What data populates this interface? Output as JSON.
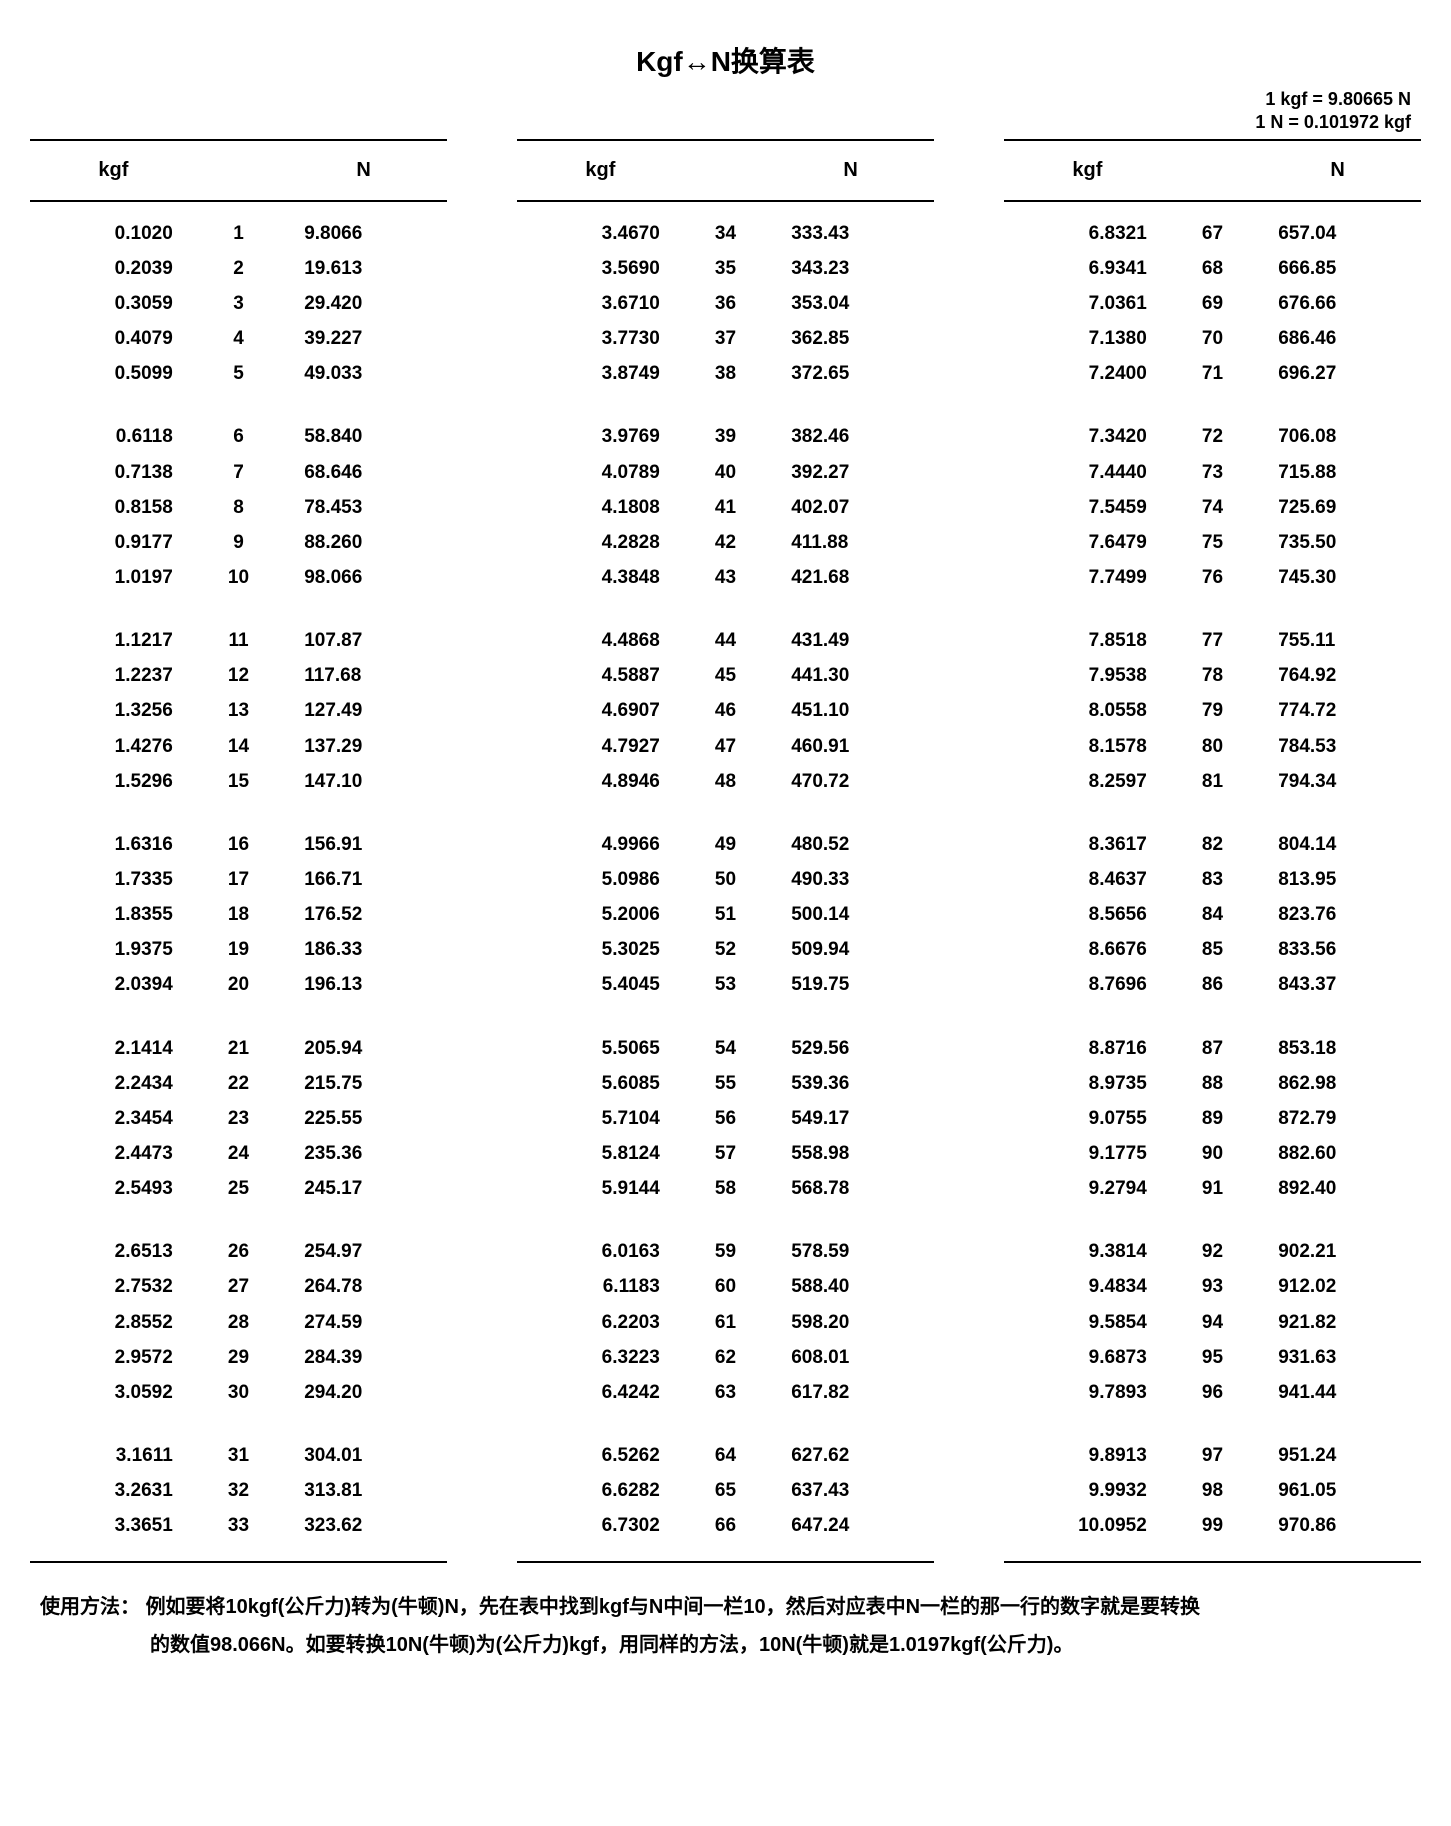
{
  "title": "Kgf↔N换算表",
  "conversion_lines": [
    "1 kgf = 9.80665 N",
    "1 N = 0.101972 kgf"
  ],
  "headers": {
    "left": "kgf",
    "mid": "",
    "right": "N"
  },
  "columns": [
    {
      "groups": [
        [
          {
            "k": "0.1020",
            "i": "1",
            "n": "9.8066"
          },
          {
            "k": "0.2039",
            "i": "2",
            "n": "19.613"
          },
          {
            "k": "0.3059",
            "i": "3",
            "n": "29.420"
          },
          {
            "k": "0.4079",
            "i": "4",
            "n": "39.227"
          },
          {
            "k": "0.5099",
            "i": "5",
            "n": "49.033"
          }
        ],
        [
          {
            "k": "0.6118",
            "i": "6",
            "n": "58.840"
          },
          {
            "k": "0.7138",
            "i": "7",
            "n": "68.646"
          },
          {
            "k": "0.8158",
            "i": "8",
            "n": "78.453"
          },
          {
            "k": "0.9177",
            "i": "9",
            "n": "88.260"
          },
          {
            "k": "1.0197",
            "i": "10",
            "n": "98.066"
          }
        ],
        [
          {
            "k": "1.1217",
            "i": "11",
            "n": "107.87"
          },
          {
            "k": "1.2237",
            "i": "12",
            "n": "117.68"
          },
          {
            "k": "1.3256",
            "i": "13",
            "n": "127.49"
          },
          {
            "k": "1.4276",
            "i": "14",
            "n": "137.29"
          },
          {
            "k": "1.5296",
            "i": "15",
            "n": "147.10"
          }
        ],
        [
          {
            "k": "1.6316",
            "i": "16",
            "n": "156.91"
          },
          {
            "k": "1.7335",
            "i": "17",
            "n": "166.71"
          },
          {
            "k": "1.8355",
            "i": "18",
            "n": "176.52"
          },
          {
            "k": "1.9375",
            "i": "19",
            "n": "186.33"
          },
          {
            "k": "2.0394",
            "i": "20",
            "n": "196.13"
          }
        ],
        [
          {
            "k": "2.1414",
            "i": "21",
            "n": "205.94"
          },
          {
            "k": "2.2434",
            "i": "22",
            "n": "215.75"
          },
          {
            "k": "2.3454",
            "i": "23",
            "n": "225.55"
          },
          {
            "k": "2.4473",
            "i": "24",
            "n": "235.36"
          },
          {
            "k": "2.5493",
            "i": "25",
            "n": "245.17"
          }
        ],
        [
          {
            "k": "2.6513",
            "i": "26",
            "n": "254.97"
          },
          {
            "k": "2.7532",
            "i": "27",
            "n": "264.78"
          },
          {
            "k": "2.8552",
            "i": "28",
            "n": "274.59"
          },
          {
            "k": "2.9572",
            "i": "29",
            "n": "284.39"
          },
          {
            "k": "3.0592",
            "i": "30",
            "n": "294.20"
          }
        ],
        [
          {
            "k": "3.1611",
            "i": "31",
            "n": "304.01"
          },
          {
            "k": "3.2631",
            "i": "32",
            "n": "313.81"
          },
          {
            "k": "3.3651",
            "i": "33",
            "n": "323.62"
          }
        ]
      ]
    },
    {
      "groups": [
        [
          {
            "k": "3.4670",
            "i": "34",
            "n": "333.43"
          },
          {
            "k": "3.5690",
            "i": "35",
            "n": "343.23"
          },
          {
            "k": "3.6710",
            "i": "36",
            "n": "353.04"
          },
          {
            "k": "3.7730",
            "i": "37",
            "n": "362.85"
          },
          {
            "k": "3.8749",
            "i": "38",
            "n": "372.65"
          }
        ],
        [
          {
            "k": "3.9769",
            "i": "39",
            "n": "382.46"
          },
          {
            "k": "4.0789",
            "i": "40",
            "n": "392.27"
          },
          {
            "k": "4.1808",
            "i": "41",
            "n": "402.07"
          },
          {
            "k": "4.2828",
            "i": "42",
            "n": "411.88"
          },
          {
            "k": "4.3848",
            "i": "43",
            "n": "421.68"
          }
        ],
        [
          {
            "k": "4.4868",
            "i": "44",
            "n": "431.49"
          },
          {
            "k": "4.5887",
            "i": "45",
            "n": "441.30"
          },
          {
            "k": "4.6907",
            "i": "46",
            "n": "451.10"
          },
          {
            "k": "4.7927",
            "i": "47",
            "n": "460.91"
          },
          {
            "k": "4.8946",
            "i": "48",
            "n": "470.72"
          }
        ],
        [
          {
            "k": "4.9966",
            "i": "49",
            "n": "480.52"
          },
          {
            "k": "5.0986",
            "i": "50",
            "n": "490.33"
          },
          {
            "k": "5.2006",
            "i": "51",
            "n": "500.14"
          },
          {
            "k": "5.3025",
            "i": "52",
            "n": "509.94"
          },
          {
            "k": "5.4045",
            "i": "53",
            "n": "519.75"
          }
        ],
        [
          {
            "k": "5.5065",
            "i": "54",
            "n": "529.56"
          },
          {
            "k": "5.6085",
            "i": "55",
            "n": "539.36"
          },
          {
            "k": "5.7104",
            "i": "56",
            "n": "549.17"
          },
          {
            "k": "5.8124",
            "i": "57",
            "n": "558.98"
          },
          {
            "k": "5.9144",
            "i": "58",
            "n": "568.78"
          }
        ],
        [
          {
            "k": "6.0163",
            "i": "59",
            "n": "578.59"
          },
          {
            "k": "6.1183",
            "i": "60",
            "n": "588.40"
          },
          {
            "k": "6.2203",
            "i": "61",
            "n": "598.20"
          },
          {
            "k": "6.3223",
            "i": "62",
            "n": "608.01"
          },
          {
            "k": "6.4242",
            "i": "63",
            "n": "617.82"
          }
        ],
        [
          {
            "k": "6.5262",
            "i": "64",
            "n": "627.62"
          },
          {
            "k": "6.6282",
            "i": "65",
            "n": "637.43"
          },
          {
            "k": "6.7302",
            "i": "66",
            "n": "647.24"
          }
        ]
      ]
    },
    {
      "groups": [
        [
          {
            "k": "6.8321",
            "i": "67",
            "n": "657.04"
          },
          {
            "k": "6.9341",
            "i": "68",
            "n": "666.85"
          },
          {
            "k": "7.0361",
            "i": "69",
            "n": "676.66"
          },
          {
            "k": "7.1380",
            "i": "70",
            "n": "686.46"
          },
          {
            "k": "7.2400",
            "i": "71",
            "n": "696.27"
          }
        ],
        [
          {
            "k": "7.3420",
            "i": "72",
            "n": "706.08"
          },
          {
            "k": "7.4440",
            "i": "73",
            "n": "715.88"
          },
          {
            "k": "7.5459",
            "i": "74",
            "n": "725.69"
          },
          {
            "k": "7.6479",
            "i": "75",
            "n": "735.50"
          },
          {
            "k": "7.7499",
            "i": "76",
            "n": "745.30"
          }
        ],
        [
          {
            "k": "7.8518",
            "i": "77",
            "n": "755.11"
          },
          {
            "k": "7.9538",
            "i": "78",
            "n": "764.92"
          },
          {
            "k": "8.0558",
            "i": "79",
            "n": "774.72"
          },
          {
            "k": "8.1578",
            "i": "80",
            "n": "784.53"
          },
          {
            "k": "8.2597",
            "i": "81",
            "n": "794.34"
          }
        ],
        [
          {
            "k": "8.3617",
            "i": "82",
            "n": "804.14"
          },
          {
            "k": "8.4637",
            "i": "83",
            "n": "813.95"
          },
          {
            "k": "8.5656",
            "i": "84",
            "n": "823.76"
          },
          {
            "k": "8.6676",
            "i": "85",
            "n": "833.56"
          },
          {
            "k": "8.7696",
            "i": "86",
            "n": "843.37"
          }
        ],
        [
          {
            "k": "8.8716",
            "i": "87",
            "n": "853.18"
          },
          {
            "k": "8.9735",
            "i": "88",
            "n": "862.98"
          },
          {
            "k": "9.0755",
            "i": "89",
            "n": "872.79"
          },
          {
            "k": "9.1775",
            "i": "90",
            "n": "882.60"
          },
          {
            "k": "9.2794",
            "i": "91",
            "n": "892.40"
          }
        ],
        [
          {
            "k": "9.3814",
            "i": "92",
            "n": "902.21"
          },
          {
            "k": "9.4834",
            "i": "93",
            "n": "912.02"
          },
          {
            "k": "9.5854",
            "i": "94",
            "n": "921.82"
          },
          {
            "k": "9.6873",
            "i": "95",
            "n": "931.63"
          },
          {
            "k": "9.7893",
            "i": "96",
            "n": "941.44"
          }
        ],
        [
          {
            "k": "9.8913",
            "i": "97",
            "n": "951.24"
          },
          {
            "k": "9.9932",
            "i": "98",
            "n": "961.05"
          },
          {
            "k": "10.0952",
            "i": "99",
            "n": "970.86"
          }
        ]
      ]
    }
  ],
  "usage": {
    "label": "使用方法：",
    "line1": "例如要将10kgf(公斤力)转为(牛顿)N，先在表中找到kgf与N中间一栏10，然后对应表中N一栏的那一行的数字就是要转换",
    "line2": "的数值98.066N。如要转换10N(牛顿)为(公斤力)kgf，用同样的方法，10N(牛顿)就是1.0197kgf(公斤力)。"
  }
}
